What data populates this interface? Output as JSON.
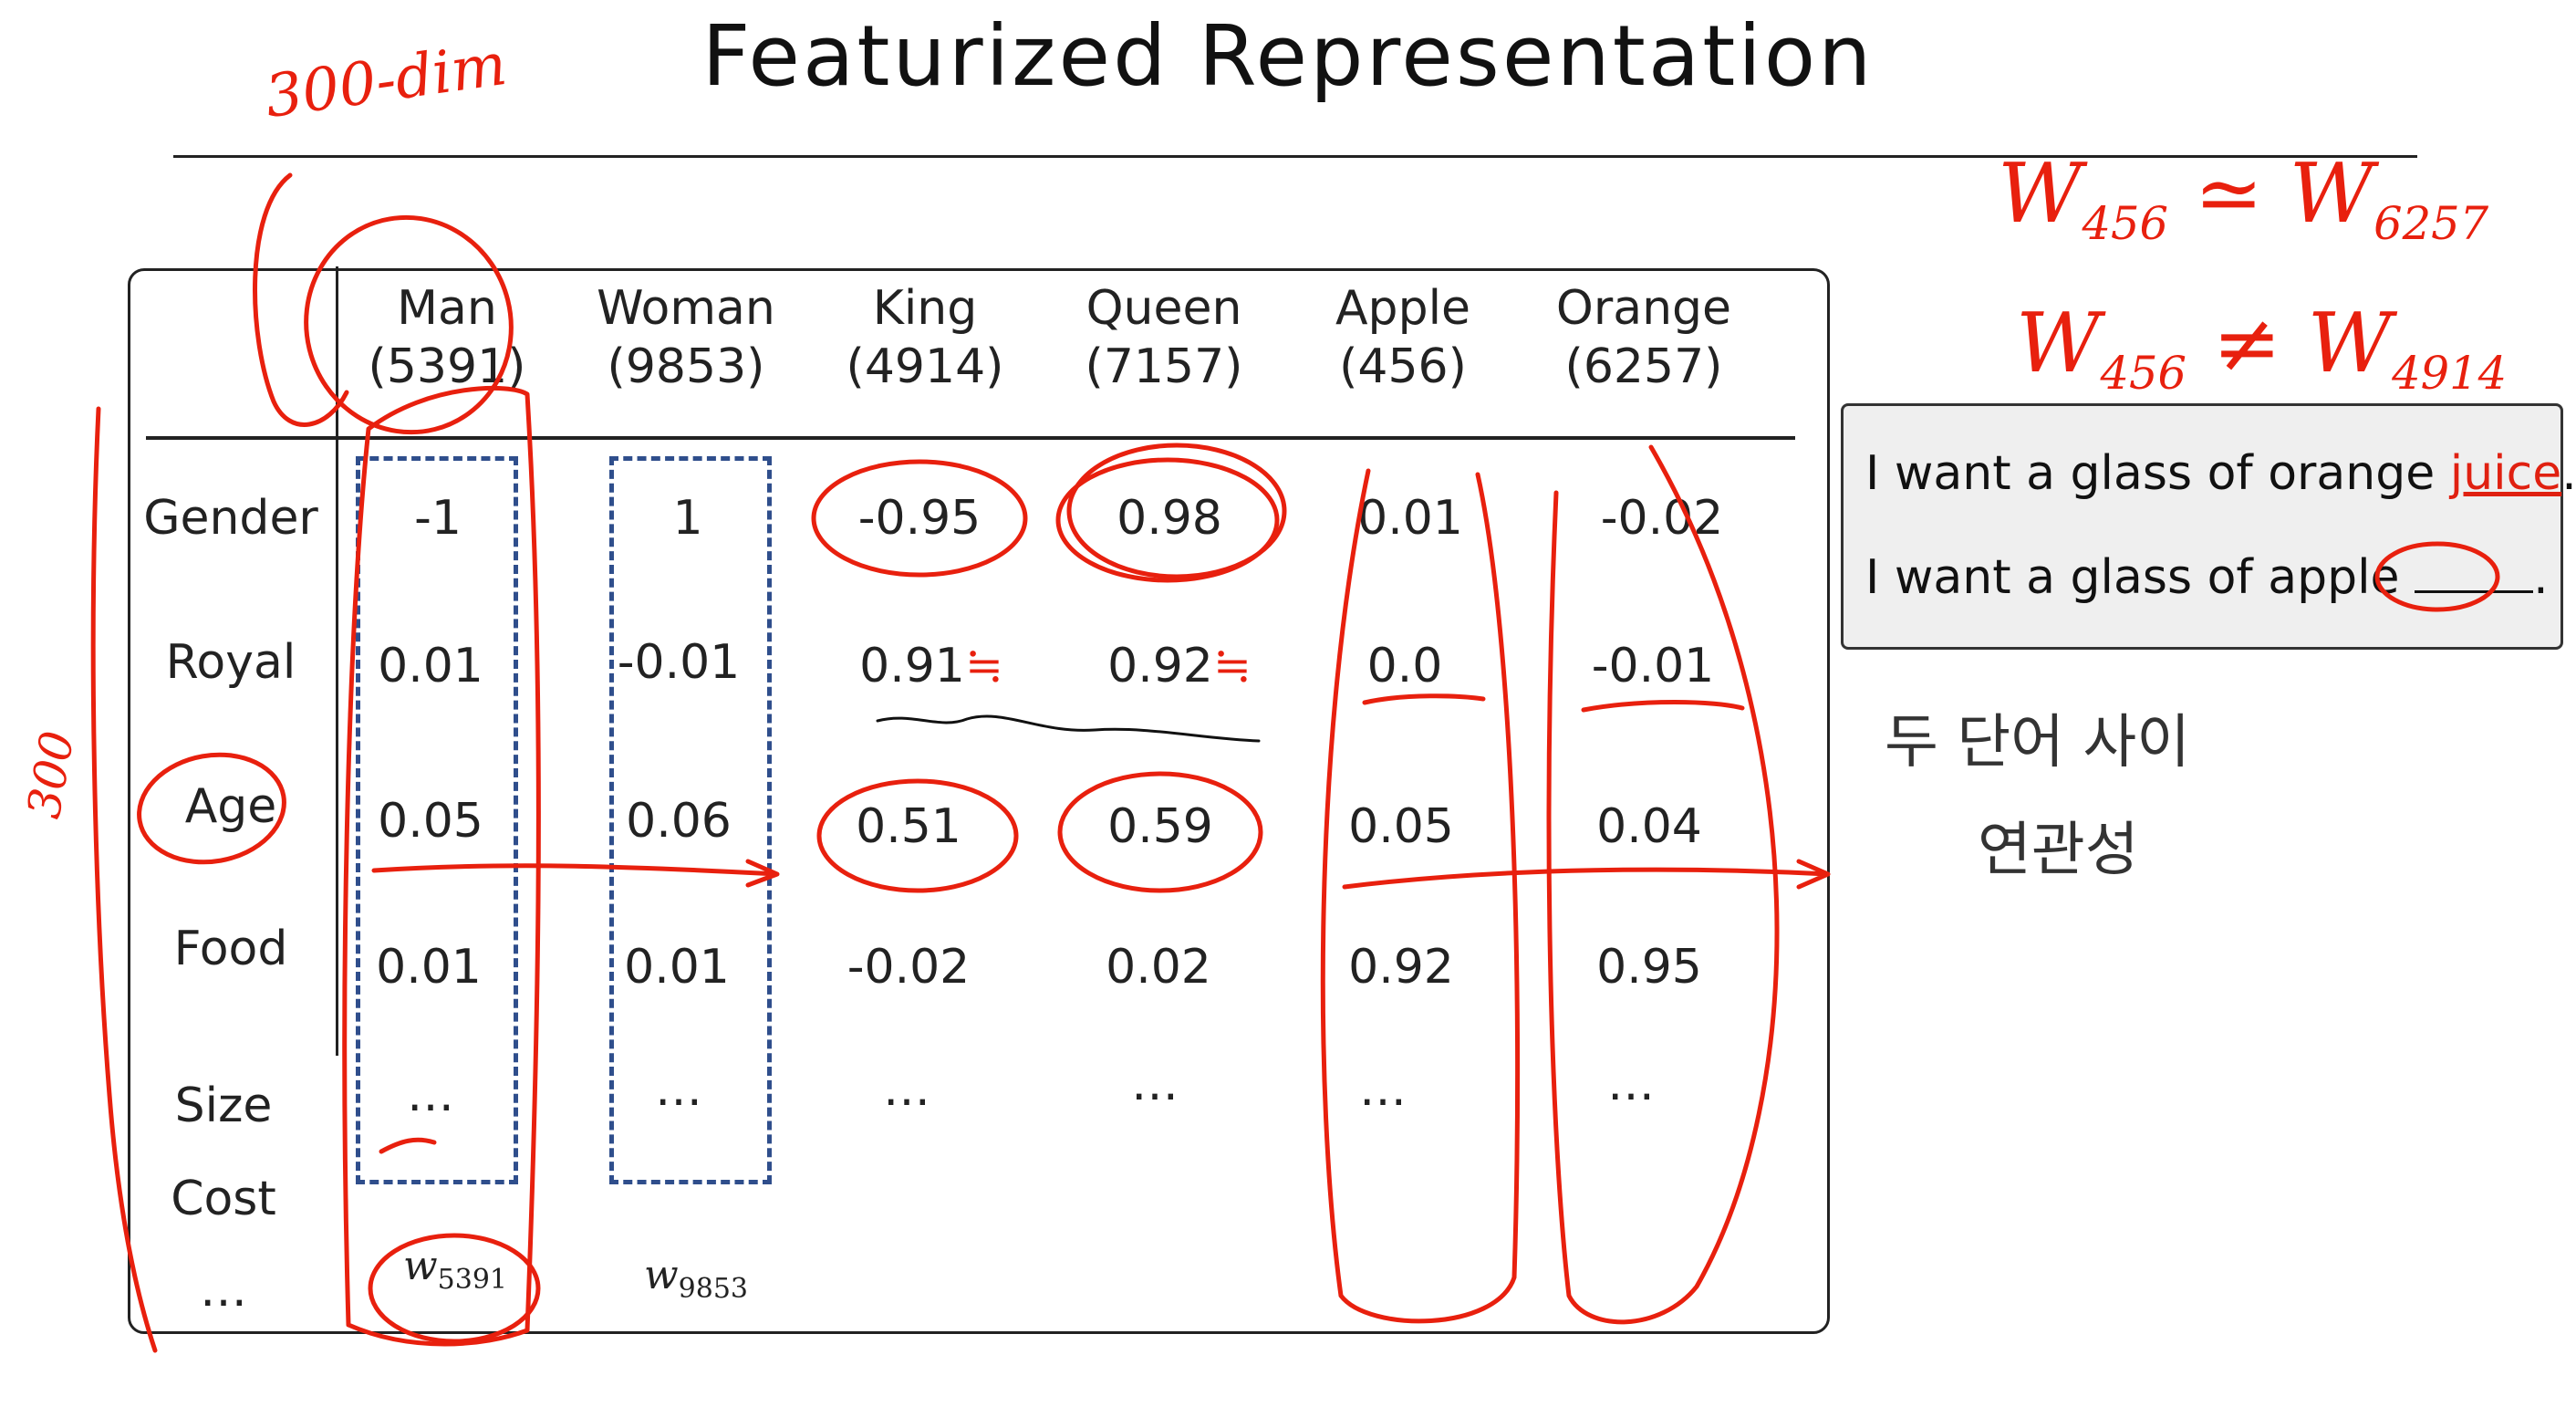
{
  "title": "Featurized Representation",
  "columns": [
    {
      "word": "Man",
      "index": "(5391)"
    },
    {
      "word": "Woman",
      "index": "(9853)"
    },
    {
      "word": "King",
      "index": "(4914)"
    },
    {
      "word": "Queen",
      "index": "(7157)"
    },
    {
      "word": "Apple",
      "index": "(456)"
    },
    {
      "word": "Orange",
      "index": "(6257)"
    }
  ],
  "rows": [
    {
      "label": "Gender",
      "values": [
        "-1",
        "1",
        "-0.95",
        "0.98",
        "0.01",
        "-0.02"
      ]
    },
    {
      "label": "Royal",
      "values": [
        "0.01",
        "-0.01",
        "0.91",
        "0.92",
        "0.0",
        "-0.01"
      ]
    },
    {
      "label": "Age",
      "values": [
        "0.05",
        "0.06",
        "0.51",
        "0.59",
        "0.05",
        "0.04"
      ]
    },
    {
      "label": "Food",
      "values": [
        "0.01",
        "0.01",
        "-0.02",
        "0.02",
        "0.92",
        "0.95"
      ]
    },
    {
      "label": "Size",
      "values": [
        "…",
        "…",
        "…",
        "…",
        "…",
        "…"
      ]
    },
    {
      "label": "Cost",
      "values": []
    },
    {
      "label": "…",
      "values": []
    }
  ],
  "vectors": [
    {
      "symbol": "w",
      "sub": "5391"
    },
    {
      "symbol": "w",
      "sub": "9853"
    }
  ],
  "sentences": {
    "s1_prefix": "I want a glass of orange ",
    "s1_word": "juice",
    "s1_suffix": ".",
    "s2_prefix": "I want a glass of apple ",
    "s2_suffix": "."
  },
  "annotations": {
    "dim_top": "300-dim",
    "dim_side": "300",
    "approx_line": {
      "lhs": "W",
      "lhs_sub": "456",
      "op": "≃",
      "rhs": "W",
      "rhs_sub": "6257"
    },
    "neq_line": {
      "lhs": "W",
      "lhs_sub": "456",
      "op": "≠",
      "rhs": "W",
      "rhs_sub": "4914"
    },
    "korean_1": "두 단어 사이",
    "korean_2": "연관성",
    "royal_mark": "≒"
  },
  "colors": {
    "ink": "#e8200e",
    "dash_box": "#2f4e8c",
    "sentence_box": "#efefef"
  }
}
